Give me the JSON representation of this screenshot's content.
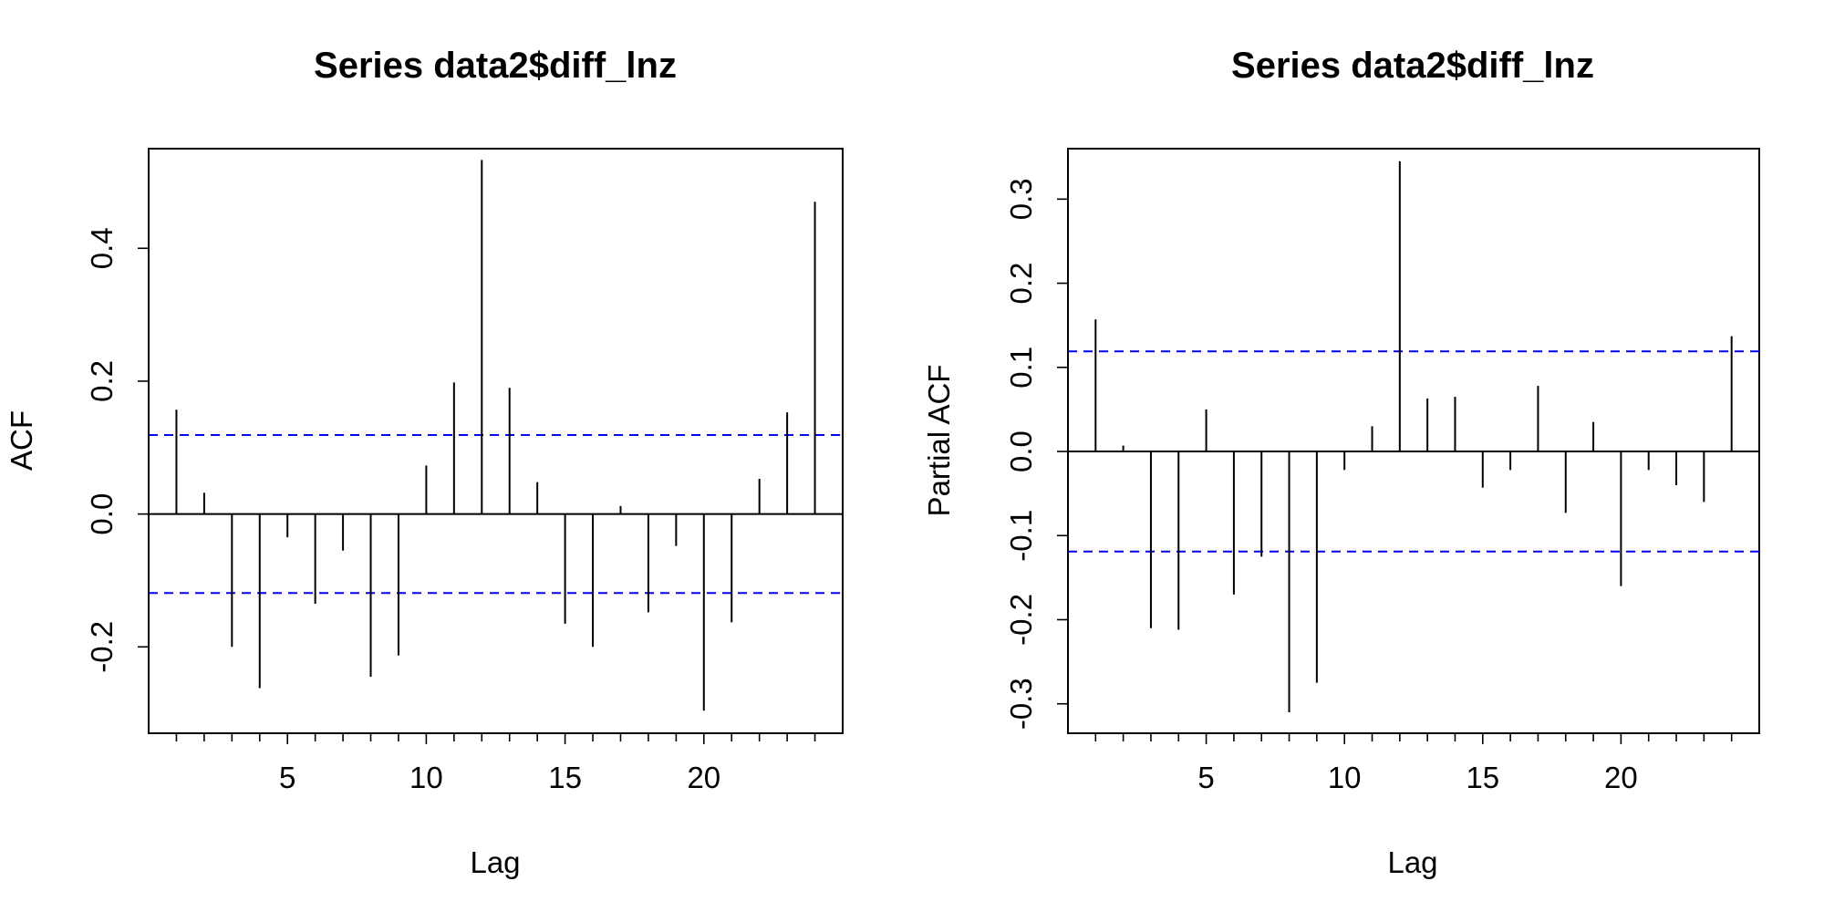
{
  "chart_data": [
    {
      "type": "bar",
      "title": "Series  data2$diff_lnz",
      "xlabel": "Lag",
      "ylabel": "ACF",
      "xlim": [
        0,
        25
      ],
      "ylim": [
        -0.33,
        0.55
      ],
      "xticks": [
        5,
        10,
        15,
        20
      ],
      "yticks": [
        -0.2,
        0.0,
        0.2,
        0.4
      ],
      "ytick_labels": [
        "-0.2",
        "0.0",
        "0.2",
        "0.4"
      ],
      "ci": 0.119,
      "ci_color": "#0000ff",
      "lags": [
        1,
        2,
        3,
        4,
        5,
        6,
        7,
        8,
        9,
        10,
        11,
        12,
        13,
        14,
        15,
        16,
        17,
        18,
        19,
        20,
        21,
        22,
        23,
        24
      ],
      "values": [
        0.157,
        0.032,
        -0.2,
        -0.262,
        -0.035,
        -0.135,
        -0.055,
        -0.245,
        -0.213,
        0.073,
        0.198,
        0.533,
        0.19,
        0.048,
        -0.165,
        -0.2,
        0.012,
        -0.148,
        -0.048,
        -0.296,
        -0.163,
        0.053,
        0.153,
        0.47
      ],
      "grid": false
    },
    {
      "type": "bar",
      "title": "Series  data2$diff_lnz",
      "xlabel": "Lag",
      "ylabel": "Partial ACF",
      "xlim": [
        0,
        25
      ],
      "ylim": [
        -0.335,
        0.36
      ],
      "xticks": [
        5,
        10,
        15,
        20
      ],
      "yticks": [
        -0.3,
        -0.2,
        -0.1,
        0.0,
        0.1,
        0.2,
        0.3
      ],
      "ytick_labels": [
        "-0.3",
        "-0.2",
        "-0.1",
        "0.0",
        "0.1",
        "0.2",
        "0.3"
      ],
      "ci": 0.119,
      "ci_color": "#0000ff",
      "lags": [
        1,
        2,
        3,
        4,
        5,
        6,
        7,
        8,
        9,
        10,
        11,
        12,
        13,
        14,
        15,
        16,
        17,
        18,
        19,
        20,
        21,
        22,
        23,
        24
      ],
      "values": [
        0.157,
        0.007,
        -0.21,
        -0.212,
        0.05,
        -0.17,
        -0.125,
        -0.31,
        -0.275,
        -0.022,
        0.03,
        0.345,
        0.063,
        0.065,
        -0.043,
        -0.022,
        0.078,
        -0.073,
        0.035,
        -0.16,
        -0.022,
        -0.04,
        -0.06,
        0.137
      ],
      "grid": false
    }
  ]
}
